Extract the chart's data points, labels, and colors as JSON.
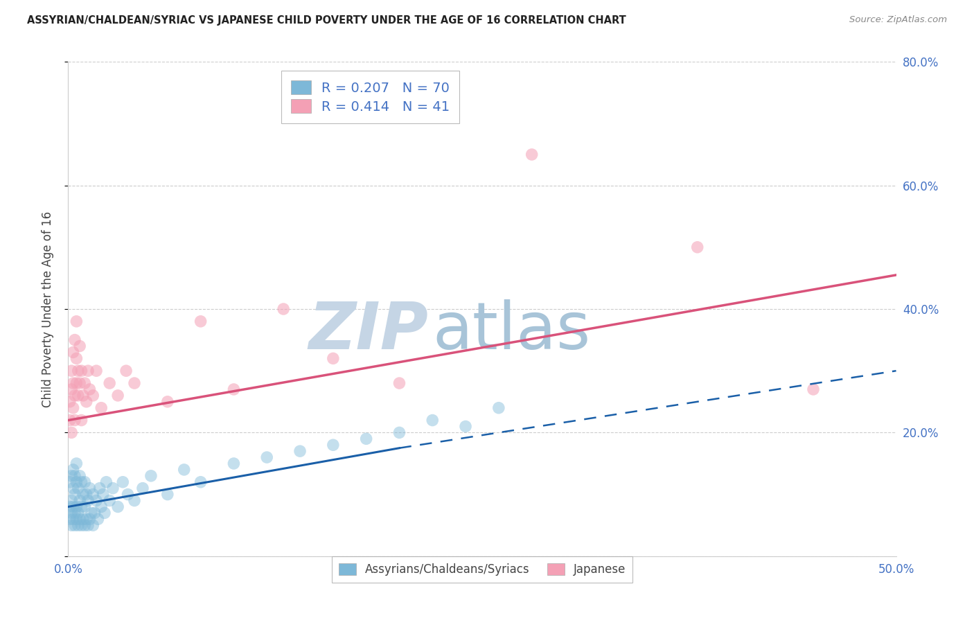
{
  "title": "ASSYRIAN/CHALDEAN/SYRIAC VS JAPANESE CHILD POVERTY UNDER THE AGE OF 16 CORRELATION CHART",
  "source": "Source: ZipAtlas.com",
  "ylabel": "Child Poverty Under the Age of 16",
  "legend_label_blue": "Assyrians/Chaldeans/Syriacs",
  "legend_label_pink": "Japanese",
  "R_blue": 0.207,
  "N_blue": 70,
  "R_pink": 0.414,
  "N_pink": 41,
  "color_blue": "#7db8d8",
  "color_pink": "#f4a0b5",
  "color_line_blue": "#1a5fa8",
  "color_line_pink": "#d9527a",
  "color_axis_labels": "#4472c4",
  "xlim": [
    0.0,
    0.5
  ],
  "ylim": [
    0.0,
    0.8
  ],
  "x_ticks": [
    0.0,
    0.1,
    0.2,
    0.3,
    0.4,
    0.5
  ],
  "x_tick_labels": [
    "0.0%",
    "",
    "",
    "",
    "",
    "50.0%"
  ],
  "y_ticks": [
    0.0,
    0.2,
    0.4,
    0.6,
    0.8
  ],
  "y_tick_labels": [
    "",
    "20.0%",
    "40.0%",
    "60.0%",
    "80.0%"
  ],
  "blue_x": [
    0.001,
    0.001,
    0.001,
    0.002,
    0.002,
    0.002,
    0.002,
    0.003,
    0.003,
    0.003,
    0.003,
    0.004,
    0.004,
    0.004,
    0.004,
    0.005,
    0.005,
    0.005,
    0.005,
    0.006,
    0.006,
    0.006,
    0.007,
    0.007,
    0.007,
    0.008,
    0.008,
    0.008,
    0.009,
    0.009,
    0.01,
    0.01,
    0.01,
    0.011,
    0.011,
    0.012,
    0.012,
    0.013,
    0.013,
    0.014,
    0.015,
    0.015,
    0.016,
    0.017,
    0.018,
    0.019,
    0.02,
    0.021,
    0.022,
    0.023,
    0.025,
    0.027,
    0.03,
    0.033,
    0.036,
    0.04,
    0.045,
    0.05,
    0.06,
    0.07,
    0.08,
    0.1,
    0.12,
    0.14,
    0.16,
    0.18,
    0.2,
    0.22,
    0.24,
    0.26
  ],
  "blue_y": [
    0.06,
    0.08,
    0.12,
    0.05,
    0.07,
    0.09,
    0.13,
    0.06,
    0.08,
    0.11,
    0.14,
    0.05,
    0.07,
    0.1,
    0.13,
    0.06,
    0.08,
    0.12,
    0.15,
    0.05,
    0.07,
    0.11,
    0.06,
    0.09,
    0.13,
    0.05,
    0.08,
    0.12,
    0.06,
    0.1,
    0.05,
    0.08,
    0.12,
    0.06,
    0.1,
    0.05,
    0.09,
    0.06,
    0.11,
    0.07,
    0.05,
    0.1,
    0.07,
    0.09,
    0.06,
    0.11,
    0.08,
    0.1,
    0.07,
    0.12,
    0.09,
    0.11,
    0.08,
    0.12,
    0.1,
    0.09,
    0.11,
    0.13,
    0.1,
    0.14,
    0.12,
    0.15,
    0.16,
    0.17,
    0.18,
    0.19,
    0.2,
    0.22,
    0.21,
    0.24
  ],
  "pink_x": [
    0.001,
    0.001,
    0.002,
    0.002,
    0.002,
    0.003,
    0.003,
    0.003,
    0.004,
    0.004,
    0.004,
    0.005,
    0.005,
    0.005,
    0.006,
    0.006,
    0.007,
    0.007,
    0.008,
    0.008,
    0.009,
    0.01,
    0.011,
    0.012,
    0.013,
    0.015,
    0.017,
    0.02,
    0.025,
    0.03,
    0.035,
    0.04,
    0.06,
    0.08,
    0.1,
    0.13,
    0.16,
    0.2,
    0.28,
    0.38,
    0.45
  ],
  "pink_y": [
    0.22,
    0.25,
    0.2,
    0.27,
    0.3,
    0.24,
    0.28,
    0.33,
    0.22,
    0.26,
    0.35,
    0.28,
    0.32,
    0.38,
    0.26,
    0.3,
    0.28,
    0.34,
    0.22,
    0.3,
    0.26,
    0.28,
    0.25,
    0.3,
    0.27,
    0.26,
    0.3,
    0.24,
    0.28,
    0.26,
    0.3,
    0.28,
    0.25,
    0.38,
    0.27,
    0.4,
    0.32,
    0.28,
    0.65,
    0.5,
    0.27
  ],
  "blue_line_start_x": 0.0,
  "blue_line_start_y": 0.08,
  "blue_line_solid_end_x": 0.2,
  "blue_line_solid_end_y": 0.175,
  "blue_line_dash_end_x": 0.5,
  "blue_line_dash_end_y": 0.3,
  "pink_line_start_x": 0.0,
  "pink_line_start_y": 0.22,
  "pink_line_end_x": 0.5,
  "pink_line_end_y": 0.455,
  "watermark_zip": "ZIP",
  "watermark_atlas": "atlas",
  "watermark_color_zip": "#c5d5e5",
  "watermark_color_atlas": "#a8c4d8",
  "background_color": "#ffffff",
  "grid_color": "#cccccc"
}
